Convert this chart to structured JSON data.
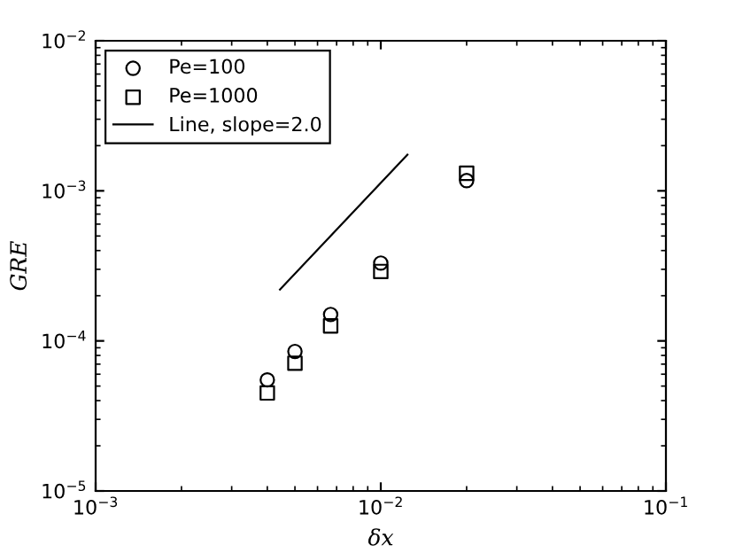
{
  "chart_data": {
    "type": "scatter",
    "xlabel": "δx",
    "ylabel": "GRE",
    "log": "xy",
    "grid": false,
    "legend": "top left",
    "xlim": [
      0.001,
      0.1
    ],
    "ylim": [
      1e-05,
      0.01
    ],
    "xticks": [
      {
        "value": 0.001,
        "label": "10$^{−3}$"
      },
      {
        "value": 0.01,
        "label": "10$^{−2}$"
      },
      {
        "value": 0.1,
        "label": "10$^{−1}$"
      }
    ],
    "yticks": [
      {
        "value": 1e-05,
        "label": "10$^{−5}$"
      },
      {
        "value": 0.0001,
        "label": "10$^{−4}$"
      },
      {
        "value": 0.001,
        "label": "10$^{−3}$"
      },
      {
        "value": 0.01,
        "label": "10$^{−2}$"
      }
    ],
    "x": [
      0.004,
      0.005,
      0.00667,
      0.01,
      0.02
    ],
    "series": [
      {
        "name": "Pe=100",
        "color": "#000000",
        "marker": "circle",
        "values": [
          5.5e-05,
          8.5e-05,
          0.00015,
          0.00033,
          0.00117
        ]
      },
      {
        "name": "Pe=1000",
        "color": "#000000",
        "marker": "square",
        "values": [
          4.5e-05,
          7.1e-05,
          0.000126,
          0.00029,
          0.00131
        ]
      },
      {
        "name": "Line, slope=2.0",
        "type": "line",
        "color": "#000000",
        "marker": "none",
        "line_style": "solid",
        "x": [
          0.00443,
          0.0124
        ],
        "values": [
          0.00022,
          0.00174
        ]
      }
    ]
  }
}
